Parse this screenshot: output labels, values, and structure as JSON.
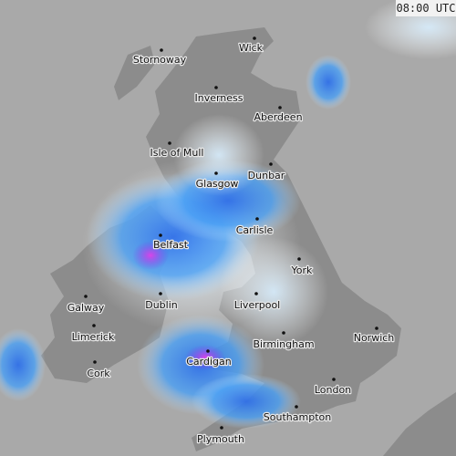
{
  "time": "08:00 UTC",
  "places": [
    {
      "label": "Stornoway"
    },
    {
      "label": "Wick"
    },
    {
      "label": "Inverness"
    },
    {
      "label": "Aberdeen"
    },
    {
      "label": "Isle of Mull"
    },
    {
      "label": "Dunbar"
    },
    {
      "label": "Glasgow"
    },
    {
      "label": "Carlisle"
    },
    {
      "label": "Belfast"
    },
    {
      "label": "York"
    },
    {
      "label": "Galway"
    },
    {
      "label": "Dublin"
    },
    {
      "label": "Liverpool"
    },
    {
      "label": "Limerick"
    },
    {
      "label": "Norwich"
    },
    {
      "label": "Birmingham"
    },
    {
      "label": "Cardigan"
    },
    {
      "label": "Cork"
    },
    {
      "label": "London"
    },
    {
      "label": "Southampton"
    },
    {
      "label": "Plymouth"
    }
  ]
}
